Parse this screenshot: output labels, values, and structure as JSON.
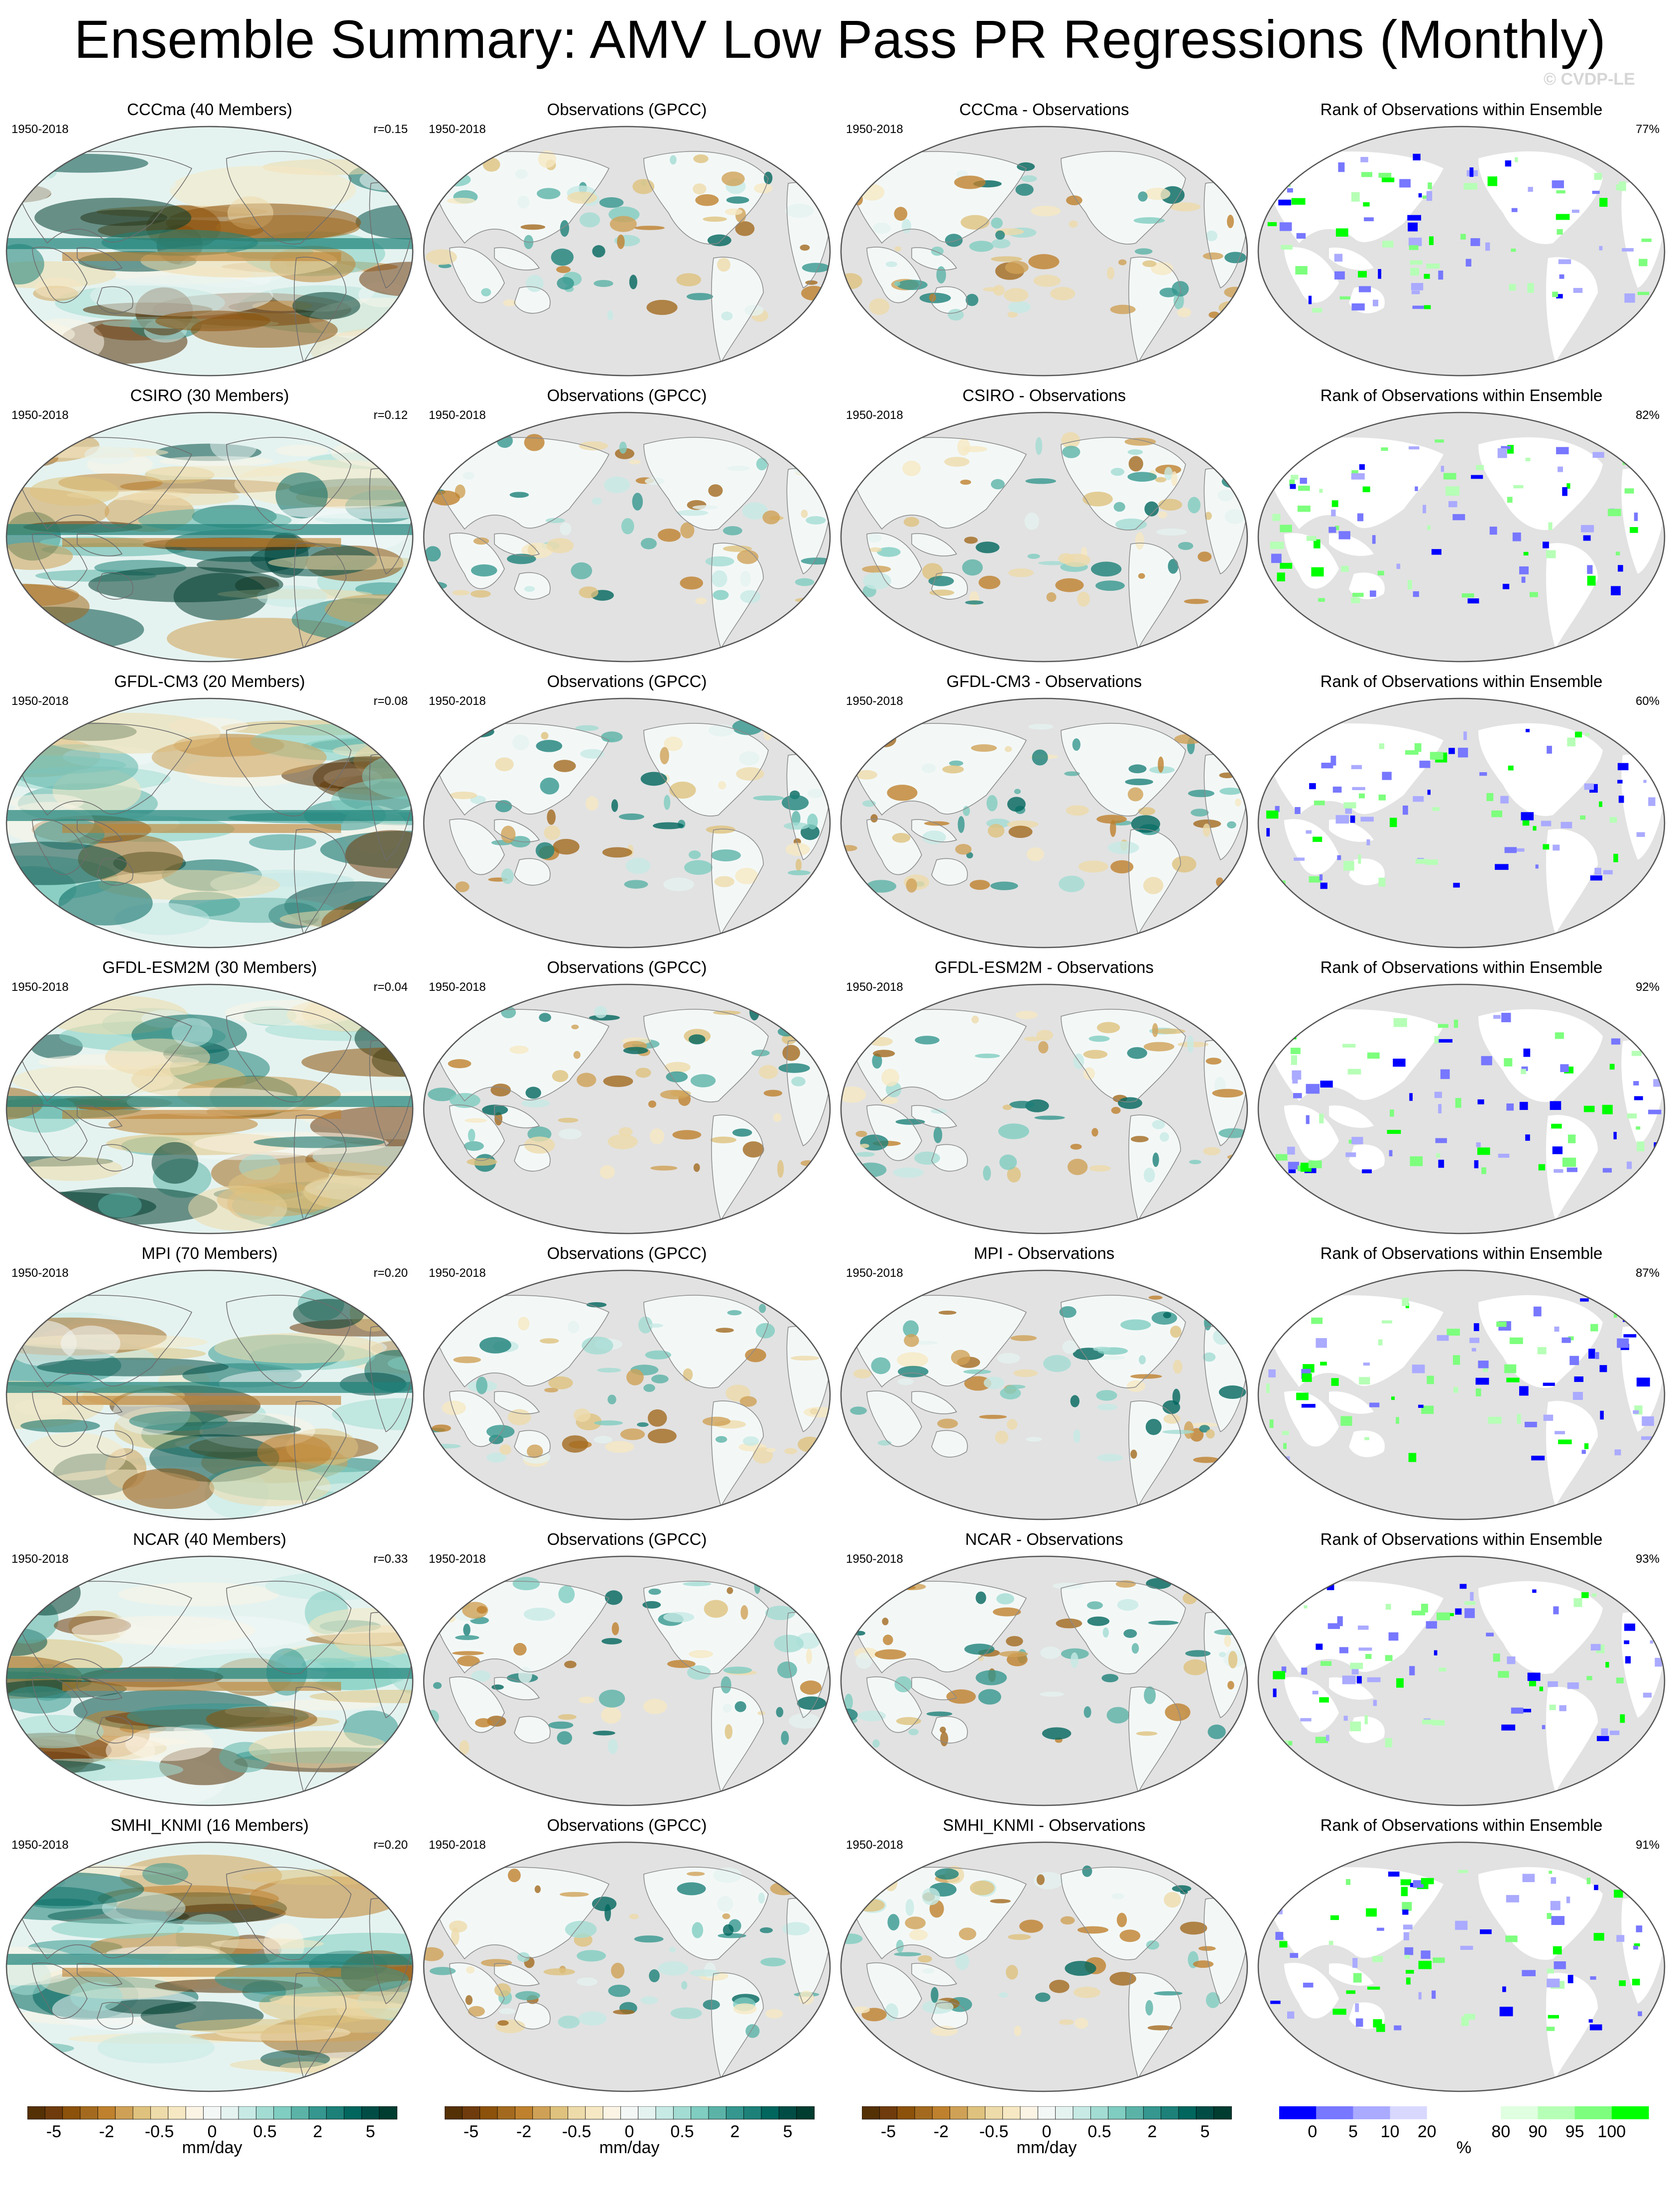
{
  "title": "Ensemble Summary: AMV Low Pass PR Regressions (Monthly)",
  "watermark": "© CVDP-LE",
  "colors": {
    "diverging": [
      "#543005",
      "#6f3b0c",
      "#8c510a",
      "#a36a1f",
      "#bf812d",
      "#cfa156",
      "#dfc27d",
      "#eedbaa",
      "#f6e8c3",
      "#fbf4e5",
      "#f3f8f7",
      "#e5f3f0",
      "#c7eae5",
      "#a3dcd3",
      "#80cdc1",
      "#5bb3a8",
      "#35978f",
      "#1d8179",
      "#01665e",
      "#014d46",
      "#003c30"
    ],
    "rank": [
      "#0000ff",
      "#7777ff",
      "#aaaaff",
      "#d8d8ff",
      "#ffffff",
      "#ffffff",
      "#e0ffe0",
      "#b6ffb6",
      "#7dff7d",
      "#00ff00"
    ],
    "land_gray": "#e2e2e2"
  },
  "rows": [
    {
      "model": "CCCma (40 Members)",
      "diff": "CCCma - Observations",
      "r": "r=0.15",
      "rank": "77%"
    },
    {
      "model": "CSIRO (30 Members)",
      "diff": "CSIRO - Observations",
      "r": "r=0.12",
      "rank": "82%"
    },
    {
      "model": "GFDL-CM3 (20 Members)",
      "diff": "GFDL-CM3 - Observations",
      "r": "r=0.08",
      "rank": "60%"
    },
    {
      "model": "GFDL-ESM2M (30 Members)",
      "diff": "GFDL-ESM2M - Observations",
      "r": "r=0.04",
      "rank": "92%"
    },
    {
      "model": "MPI (70 Members)",
      "diff": "MPI - Observations",
      "r": "r=0.20",
      "rank": "87%"
    },
    {
      "model": "NCAR (40 Members)",
      "diff": "NCAR - Observations",
      "r": "r=0.33",
      "rank": "93%"
    },
    {
      "model": "SMHI_KNMI (16 Members)",
      "diff": "SMHI_KNMI - Observations",
      "r": "r=0.20",
      "rank": "91%"
    }
  ],
  "obs_title": "Observations (GPCC)",
  "rank_title": "Rank of Observations within Ensemble",
  "period": "1950-2018",
  "colorbar": {
    "ticks": [
      "-5",
      "-2",
      "-0.5",
      "0",
      "0.5",
      "2",
      "5"
    ],
    "unit": "mm/day"
  },
  "rank_colorbar": {
    "ticks": [
      "0",
      "5",
      "10",
      "20",
      "80",
      "90",
      "95",
      "100"
    ],
    "unit": "%"
  }
}
